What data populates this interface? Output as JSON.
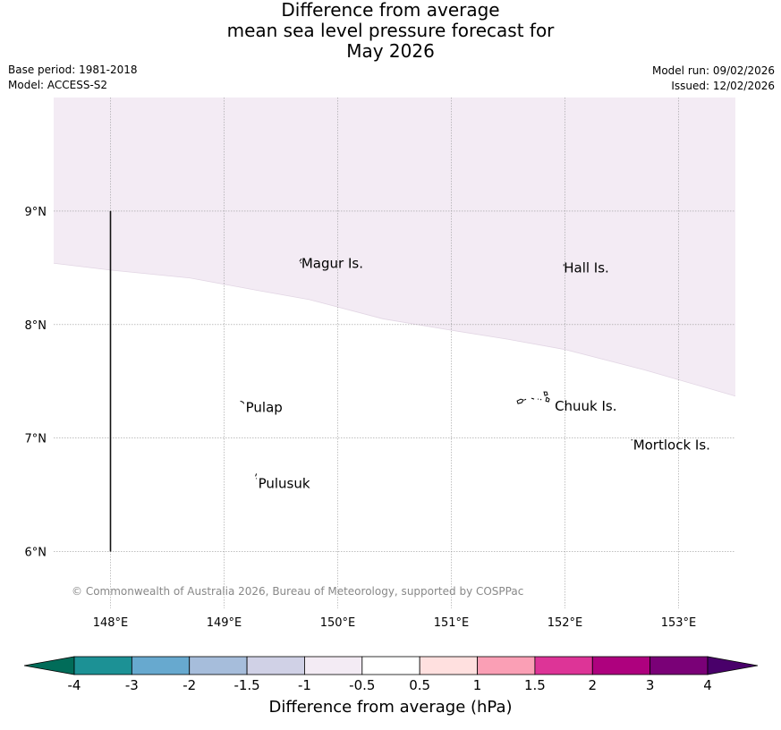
{
  "title": {
    "line1": "Difference from average",
    "line2": "mean sea level pressure forecast for",
    "line3": "May 2026"
  },
  "meta": {
    "base_period": "Base period: 1981-2018",
    "model": "Model: ACCESS-S2",
    "model_run": "Model run: 09/02/2026",
    "issued": "Issued: 12/02/2026"
  },
  "map": {
    "lat_ticks": [
      {
        "value": 9,
        "label": "9°N"
      },
      {
        "value": 8,
        "label": "8°N"
      },
      {
        "value": 7,
        "label": "7°N"
      },
      {
        "value": 6,
        "label": "6°N"
      }
    ],
    "lon_ticks": [
      {
        "value": 148,
        "label": "148°E"
      },
      {
        "value": 149,
        "label": "149°E"
      },
      {
        "value": 150,
        "label": "150°E"
      },
      {
        "value": 151,
        "label": "151°E"
      },
      {
        "value": 152,
        "label": "152°E"
      },
      {
        "value": 153,
        "label": "153°E"
      }
    ],
    "extent": {
      "lon_min": 147.5,
      "lon_max": 153.5,
      "lat_min": 5.5,
      "lat_max": 10
    },
    "places": [
      {
        "name": "Magur Is.",
        "lon": 149.68,
        "lat": 8.54
      },
      {
        "name": "Hall Is.",
        "lon": 151.99,
        "lat": 8.5
      },
      {
        "name": "Pulap",
        "lon": 149.19,
        "lat": 7.27
      },
      {
        "name": "Chuuk Is.",
        "lon": 151.91,
        "lat": 7.28
      },
      {
        "name": "Mortlock Is.",
        "lon": 152.6,
        "lat": 6.94
      },
      {
        "name": "Pulusuk",
        "lon": 149.3,
        "lat": 6.6
      }
    ],
    "shaded_region": {
      "category": "-1 to -0.5",
      "color": "#f3ebf4",
      "southern_boundary": [
        {
          "lon": 147.5,
          "lat": 8.54
        },
        {
          "lon": 148.0,
          "lat": 8.48
        },
        {
          "lon": 148.7,
          "lat": 8.41
        },
        {
          "lon": 149.3,
          "lat": 8.3
        },
        {
          "lon": 149.75,
          "lat": 8.22
        },
        {
          "lon": 150.4,
          "lat": 8.05
        },
        {
          "lon": 151.0,
          "lat": 7.95
        },
        {
          "lon": 151.5,
          "lat": 7.87
        },
        {
          "lon": 152.0,
          "lat": 7.78
        },
        {
          "lon": 152.7,
          "lat": 7.6
        },
        {
          "lon": 153.5,
          "lat": 7.37
        }
      ]
    },
    "meridian_line": {
      "lon": 148,
      "lat_from": 6,
      "lat_to": 9
    },
    "copyright": "© Commonwealth of Australia 2026, Bureau of Meteorology, supported by COSPPac"
  },
  "colorbar": {
    "title": "Difference from average (hPa)",
    "boundaries": [
      "-4",
      "-3",
      "-2",
      "-1.5",
      "-1",
      "-0.5",
      "0.5",
      "1",
      "1.5",
      "2",
      "3",
      "4"
    ],
    "colors": [
      "#1c9195",
      "#67a9cf",
      "#a6bddb",
      "#d0d1e6",
      "#f3ebf4",
      "#ffffff",
      "#ffe0df",
      "#fa9fb5",
      "#dd3497",
      "#ae017e",
      "#7a0177"
    ],
    "under_color": "#016c59",
    "over_color": "#49006a"
  }
}
